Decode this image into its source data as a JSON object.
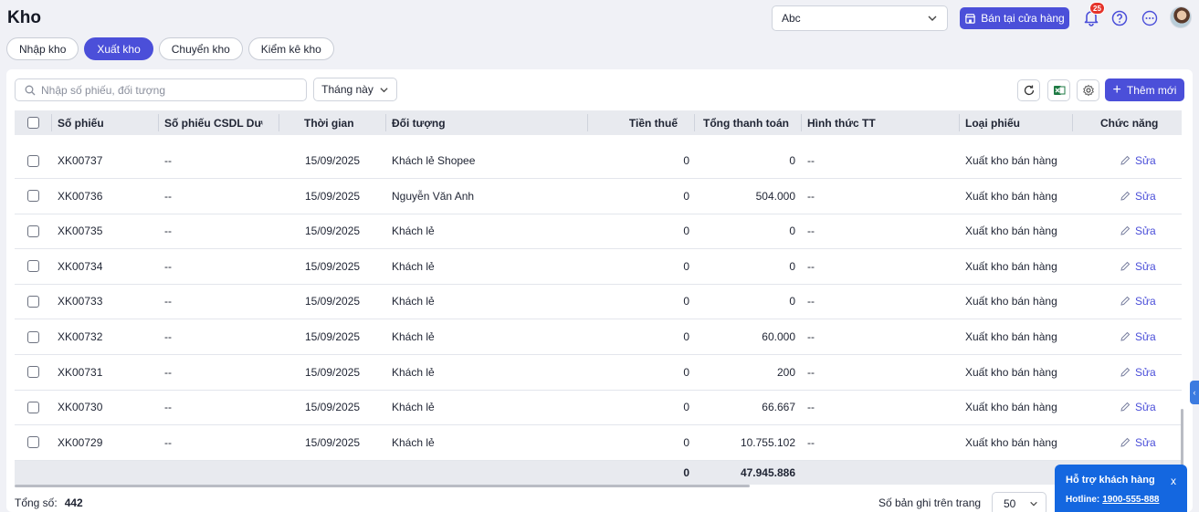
{
  "header": {
    "title": "Kho",
    "store_select": "Abc",
    "sell_button": "Bán tại cửa hàng",
    "notification_count": "25"
  },
  "tabs": [
    {
      "label": "Nhập kho",
      "active": false
    },
    {
      "label": "Xuất kho",
      "active": true
    },
    {
      "label": "Chuyển kho",
      "active": false
    },
    {
      "label": "Kiểm kê kho",
      "active": false
    }
  ],
  "toolbar": {
    "search_placeholder": "Nhập số phiếu, đối tượng",
    "period": "Tháng này",
    "add_button": "Thêm mới"
  },
  "table": {
    "columns": [
      "Số phiếu",
      "Số phiếu CSDL Dượ",
      "Thời gian",
      "Đối tượng",
      "Tiền thuế",
      "Tổng thanh toán",
      "Hình thức TT",
      "Loại phiếu",
      "Chức năng"
    ],
    "rows": [
      {
        "code": "XK00737",
        "csdl": "--",
        "time": "15/09/2025",
        "party": "Khách lẻ Shopee",
        "tax": "0",
        "total": "0",
        "payment": "--",
        "type": "Xuất kho bán hàng",
        "action": "Sửa"
      },
      {
        "code": "XK00736",
        "csdl": "--",
        "time": "15/09/2025",
        "party": "Nguyễn Văn Anh",
        "tax": "0",
        "total": "504.000",
        "payment": "--",
        "type": "Xuất kho bán hàng",
        "action": "Sửa"
      },
      {
        "code": "XK00735",
        "csdl": "--",
        "time": "15/09/2025",
        "party": "Khách lẻ",
        "tax": "0",
        "total": "0",
        "payment": "--",
        "type": "Xuất kho bán hàng",
        "action": "Sửa"
      },
      {
        "code": "XK00734",
        "csdl": "--",
        "time": "15/09/2025",
        "party": "Khách lẻ",
        "tax": "0",
        "total": "0",
        "payment": "--",
        "type": "Xuất kho bán hàng",
        "action": "Sửa"
      },
      {
        "code": "XK00733",
        "csdl": "--",
        "time": "15/09/2025",
        "party": "Khách lẻ",
        "tax": "0",
        "total": "0",
        "payment": "--",
        "type": "Xuất kho bán hàng",
        "action": "Sửa"
      },
      {
        "code": "XK00732",
        "csdl": "--",
        "time": "15/09/2025",
        "party": "Khách lẻ",
        "tax": "0",
        "total": "60.000",
        "payment": "--",
        "type": "Xuất kho bán hàng",
        "action": "Sửa"
      },
      {
        "code": "XK00731",
        "csdl": "--",
        "time": "15/09/2025",
        "party": "Khách lẻ",
        "tax": "0",
        "total": "200",
        "payment": "--",
        "type": "Xuất kho bán hàng",
        "action": "Sửa"
      },
      {
        "code": "XK00730",
        "csdl": "--",
        "time": "15/09/2025",
        "party": "Khách lẻ",
        "tax": "0",
        "total": "66.667",
        "payment": "--",
        "type": "Xuất kho bán hàng",
        "action": "Sửa"
      },
      {
        "code": "XK00729",
        "csdl": "--",
        "time": "15/09/2025",
        "party": "Khách lẻ",
        "tax": "0",
        "total": "10.755.102",
        "payment": "--",
        "type": "Xuất kho bán hàng",
        "action": "Sửa"
      }
    ],
    "summary": {
      "tax": "0",
      "total": "47.945.886"
    }
  },
  "footer": {
    "total_label": "Tổng số:",
    "total_value": "442",
    "page_size_label": "Số bản ghi trên trang",
    "page_size": "50"
  },
  "support": {
    "title": "Hỗ trợ khách hàng",
    "close": "x",
    "hotline_label": "Hotline:",
    "hotline_number": "1900-555-888"
  },
  "colors": {
    "accent": "#4b4fd9",
    "support": "#1467e0",
    "badge": "#e5332a"
  }
}
